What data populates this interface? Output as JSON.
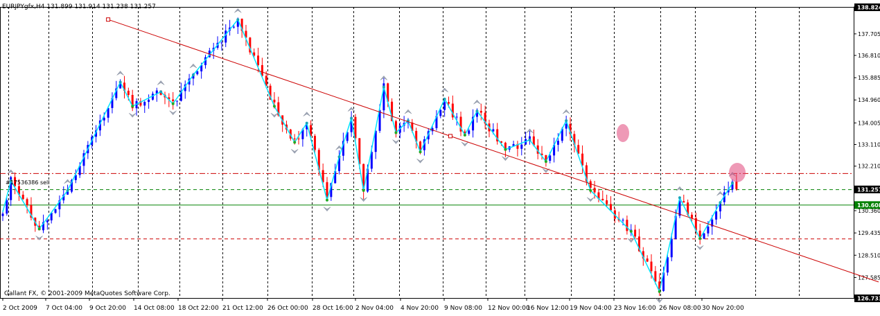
{
  "header": {
    "symbol": "EURJPYgfx,H4",
    "open": "131.899",
    "high": "131.914",
    "low": "131.238",
    "close": "131.257"
  },
  "copyright": "Gallant FX, © 2001-2009 MetaQuotes Software Corp.",
  "level_label": "#17536386 sell",
  "colors": {
    "bull": "#0000ff",
    "bear": "#ff0000",
    "zigzag": "#00e5ff",
    "trendline": "#cc0000",
    "fractal": "#a0a8b8",
    "grid": "#000000",
    "green_line": "#008000",
    "price_tag_bg": "#000000",
    "green_tag_bg": "#008000"
  },
  "chart_data": {
    "type": "candlestick",
    "ylim": [
      126.733,
      138.824
    ],
    "y_tick_labels": [
      "138.824",
      "137.705",
      "136.810",
      "135.885",
      "134.960",
      "134.005",
      "133.110",
      "132.210",
      "131.257",
      "130.608",
      "130.360",
      "129.435",
      "128.510",
      "127.585",
      "126.733"
    ],
    "x_tick_labels": [
      "2 Oct 2009",
      "7 Oct 04:00",
      "9 Oct 20:00",
      "14 Oct 08:00",
      "18 Oct 22:00",
      "21 Oct 12:00",
      "26 Oct 00:00",
      "28 Oct 16:00",
      "2 Nov 04:00",
      "4 Nov 20:00",
      "9 Nov 08:00",
      "12 Nov 00:00",
      "16 Nov 12:00",
      "19 Nov 04:00",
      "23 Nov 16:00",
      "26 Nov 08:00",
      "30 Nov 20:00"
    ],
    "current_price": "131.257",
    "levels": [
      {
        "name": "red-dashed-upper",
        "value": 131.92,
        "style": "dashdot",
        "color": "#cc0000"
      },
      {
        "name": "green-dashed",
        "value": 131.25,
        "style": "dash",
        "color": "#008000"
      },
      {
        "name": "green-solid",
        "value": 130.608,
        "style": "solid",
        "color": "#008000",
        "tag": "130.608"
      },
      {
        "name": "red-dashed-lower",
        "value": 129.2,
        "style": "dash",
        "color": "#cc0000"
      }
    ],
    "trendline": {
      "from": [
        26,
        138.3
      ],
      "to": [
        162,
        130.5
      ]
    },
    "zigzag": [
      {
        "i": 0,
        "v": 130.3
      },
      {
        "i": 2,
        "v": 131.6
      },
      {
        "i": 9,
        "v": 129.6
      },
      {
        "i": 16,
        "v": 131.2
      },
      {
        "i": 29,
        "v": 135.7
      },
      {
        "i": 32,
        "v": 134.7
      },
      {
        "i": 39,
        "v": 135.3
      },
      {
        "i": 42,
        "v": 134.8
      },
      {
        "i": 47,
        "v": 136.0
      },
      {
        "i": 58,
        "v": 138.3
      },
      {
        "i": 67,
        "v": 134.7
      },
      {
        "i": 72,
        "v": 133.2
      },
      {
        "i": 75,
        "v": 134.0
      },
      {
        "i": 80,
        "v": 130.8
      },
      {
        "i": 83,
        "v": 132.6
      },
      {
        "i": 86,
        "v": 134.2
      },
      {
        "i": 89,
        "v": 131.2
      },
      {
        "i": 94,
        "v": 135.5
      },
      {
        "i": 97,
        "v": 133.6
      },
      {
        "i": 100,
        "v": 134.1
      },
      {
        "i": 103,
        "v": 132.8
      },
      {
        "i": 109,
        "v": 135.0
      },
      {
        "i": 114,
        "v": 133.5
      },
      {
        "i": 117,
        "v": 134.5
      },
      {
        "i": 124,
        "v": 132.9
      },
      {
        "i": 130,
        "v": 133.3
      },
      {
        "i": 134,
        "v": 132.4
      },
      {
        "i": 139,
        "v": 134.1
      },
      {
        "i": 145,
        "v": 131.2
      },
      {
        "i": 155,
        "v": 129.5
      },
      {
        "i": 162,
        "v": 127.0
      },
      {
        "i": 167,
        "v": 130.9
      },
      {
        "i": 172,
        "v": 129.2
      },
      {
        "i": 177,
        "v": 130.7
      },
      {
        "i": 180,
        "v": 131.5
      }
    ],
    "seed": 20091202
  }
}
